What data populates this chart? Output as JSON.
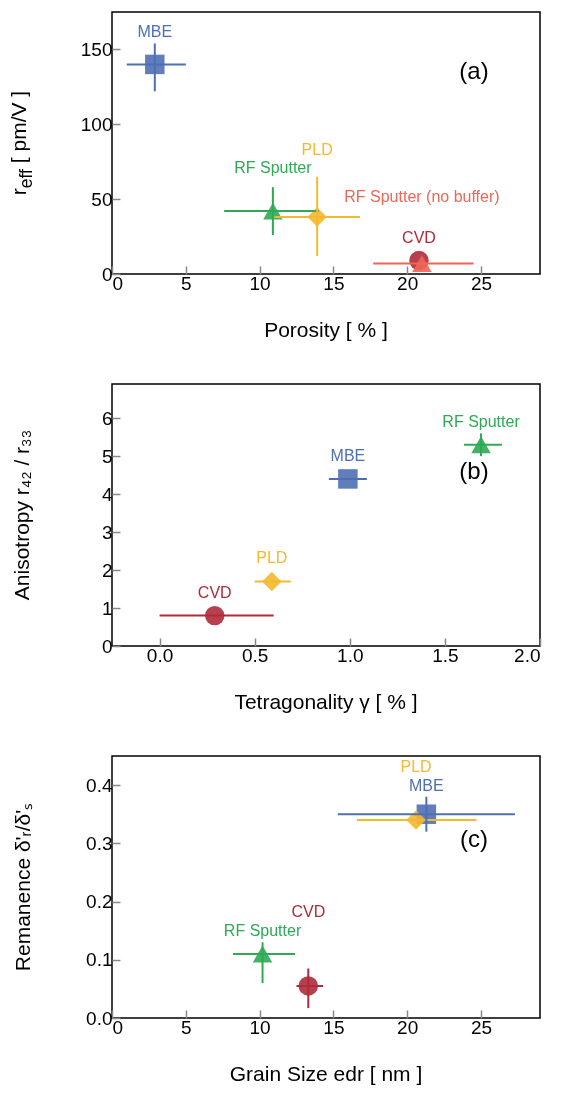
{
  "chart_data": [
    {
      "type": "scatter",
      "xlabel": "Porosity [ % ]",
      "ylabel": "r$_{eff}$ [ pm/V ]",
      "xlim": [
        0,
        29
      ],
      "ylim": [
        0,
        175
      ],
      "xticks": [
        0,
        5,
        10,
        15,
        20,
        25
      ],
      "yticks": [
        0,
        50,
        100,
        150
      ],
      "annotations": [
        "(a)"
      ],
      "series": [
        {
          "name": "MBE",
          "color": "#4f6fb5",
          "marker": "square",
          "x": [
            2.9
          ],
          "values": [
            140
          ],
          "xerrors": [
            [
              1,
              5
            ]
          ],
          "errors": [
            [
              122,
              154
            ]
          ]
        },
        {
          "name": "RF Sputter",
          "color": "#2eaa55",
          "marker": "triangle",
          "x": [
            10.9
          ],
          "values": [
            42
          ],
          "xerrors": [
            [
              7.6,
              14
            ]
          ],
          "errors": [
            [
              26,
              58
            ]
          ]
        },
        {
          "name": "PLD",
          "color": "#f5b82e",
          "marker": "diamond",
          "x": [
            13.9
          ],
          "values": [
            38
          ],
          "xerrors": [
            [
              11,
              16.8
            ]
          ],
          "errors": [
            [
              12,
              65
            ]
          ]
        },
        {
          "name": "CVD",
          "color": "#b02a3a",
          "marker": "circle",
          "x": [
            20.8
          ],
          "values": [
            9
          ]
        },
        {
          "name": "RF Sputter (no buffer)",
          "color": "#ee6655",
          "marker": "triangle",
          "x": [
            21
          ],
          "values": [
            7
          ],
          "xerrors": [
            [
              17.7,
              24.5
            ]
          ]
        }
      ]
    },
    {
      "type": "scatter",
      "xlabel": "Tetragonality γ [ % ]",
      "ylabel": "Anisotropy r₄₂ / r₃₃",
      "xlim": [
        -0.25,
        2.0
      ],
      "ylim": [
        0,
        6.9
      ],
      "xticks": [
        {
          "value": 0,
          "label": "0.0"
        },
        {
          "value": 0.5,
          "label": "0.5"
        },
        {
          "value": 1,
          "label": "1.0"
        },
        {
          "value": 1.5,
          "label": "1.5"
        },
        {
          "value": 2,
          "label": "2.0"
        }
      ],
      "yticks": [
        0,
        1,
        2,
        3,
        4,
        5,
        6
      ],
      "annotations": [
        "(b)"
      ],
      "series": [
        {
          "name": "MBE",
          "color": "#4f6fb5",
          "marker": "square",
          "x": [
            0.99
          ],
          "values": [
            4.4
          ],
          "xerrors": [
            [
              0.89,
              1.09
            ]
          ]
        },
        {
          "name": "RF Sputter",
          "color": "#2eaa55",
          "marker": "triangle",
          "x": [
            1.69
          ],
          "values": [
            5.3
          ],
          "xerrors": [
            [
              1.6,
              1.8
            ]
          ],
          "errors": [
            [
              5.0,
              5.6
            ]
          ]
        },
        {
          "name": "PLD",
          "color": "#f5b82e",
          "marker": "diamond",
          "x": [
            0.59
          ],
          "values": [
            1.7
          ],
          "xerrors": [
            [
              0.5,
              0.69
            ]
          ]
        },
        {
          "name": "CVD",
          "color": "#b02a3a",
          "marker": "circle",
          "x": [
            0.29
          ],
          "values": [
            0.8
          ],
          "xerrors": [
            [
              0,
              0.6
            ]
          ]
        }
      ]
    },
    {
      "type": "scatter",
      "xlabel": "Grain Size edr [ nm ]",
      "ylabel": "Remanence δ'ᵣ/δ'ₛ",
      "xlim": [
        0,
        29
      ],
      "ylim": [
        0,
        0.45
      ],
      "xticks": [
        0,
        5,
        10,
        15,
        20,
        25
      ],
      "yticks": [
        {
          "value": 0,
          "label": "0.0"
        },
        {
          "value": 0.1,
          "label": "0.1"
        },
        {
          "value": 0.2,
          "label": "0.2"
        },
        {
          "value": 0.3,
          "label": "0.3"
        },
        {
          "value": 0.4,
          "label": "0.4"
        }
      ],
      "annotations": [
        "(c)"
      ],
      "series": [
        {
          "name": "MBE",
          "color": "#4f6fb5",
          "marker": "square",
          "x": [
            21.3
          ],
          "values": [
            0.35
          ],
          "xerrors": [
            [
              15.3,
              27.3
            ]
          ],
          "errors": [
            [
              0.32,
              0.38
            ]
          ]
        },
        {
          "name": "RF Sputter",
          "color": "#2eaa55",
          "marker": "triangle",
          "x": [
            10.2
          ],
          "values": [
            0.11
          ],
          "xerrors": [
            [
              8.2,
              12.4
            ]
          ],
          "errors": [
            [
              0.06,
              0.13
            ]
          ]
        },
        {
          "name": "PLD",
          "color": "#f5b82e",
          "marker": "diamond",
          "x": [
            20.6
          ],
          "values": [
            0.34
          ],
          "xerrors": [
            [
              16.6,
              24.7
            ]
          ]
        },
        {
          "name": "CVD",
          "color": "#b02a3a",
          "marker": "circle",
          "x": [
            13.3
          ],
          "values": [
            0.055
          ],
          "xerrors": [
            [
              12.5,
              14.3
            ]
          ],
          "errors": [
            [
              0.017,
              0.085
            ]
          ]
        }
      ]
    }
  ]
}
